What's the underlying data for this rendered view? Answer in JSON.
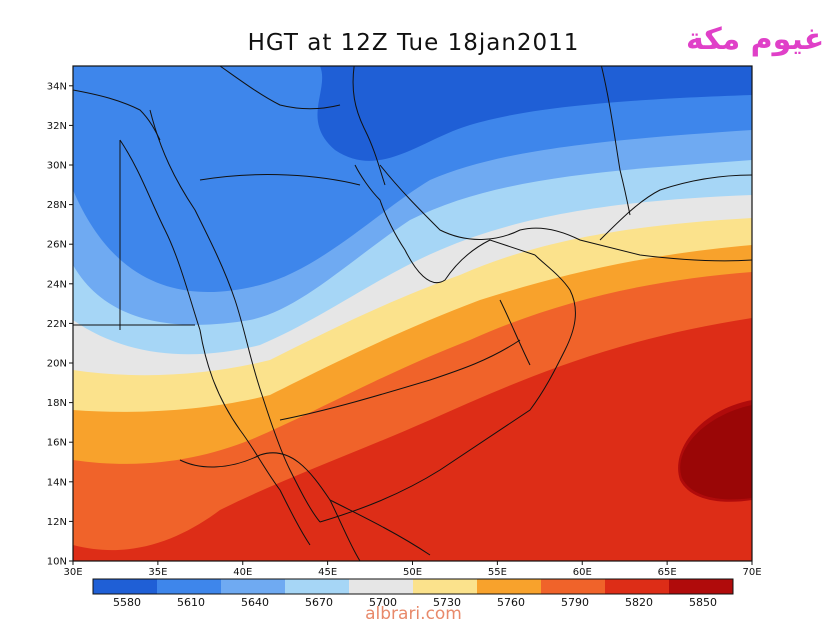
{
  "title": "HGT at 12Z Tue 18jan2011",
  "watermark": {
    "arabic": "غيوم مكة",
    "site": "albrari.com"
  },
  "map": {
    "lon_range": [
      30,
      70
    ],
    "lat_range": [
      10,
      35
    ],
    "lat_ticks": [
      "10N",
      "12N",
      "14N",
      "16N",
      "18N",
      "20N",
      "22N",
      "24N",
      "26N",
      "28N",
      "30N",
      "32N",
      "34N"
    ],
    "lon_ticks": [
      "30E",
      "35E",
      "40E",
      "45E",
      "50E",
      "55E",
      "60E",
      "65E",
      "70E"
    ],
    "contour_colors": [
      "#1f5fd6",
      "#3e86eb",
      "#6faaf2",
      "#a6d6f6",
      "#e6e6e6",
      "#fbe28c",
      "#f8a22c",
      "#f0632a",
      "#dd2d17",
      "#b00b0b"
    ],
    "background_color": "#1c4fc9"
  },
  "colorbar": {
    "colors": [
      "#1f5fd6",
      "#3e86eb",
      "#6faaf2",
      "#a6d6f6",
      "#e6e6e6",
      "#fbe28c",
      "#f8a22c",
      "#f0632a",
      "#dd2d17",
      "#b00b0b"
    ],
    "labels": [
      "5580",
      "5610",
      "5640",
      "5670",
      "5700",
      "5730",
      "5760",
      "5790",
      "5820",
      "5850"
    ]
  }
}
